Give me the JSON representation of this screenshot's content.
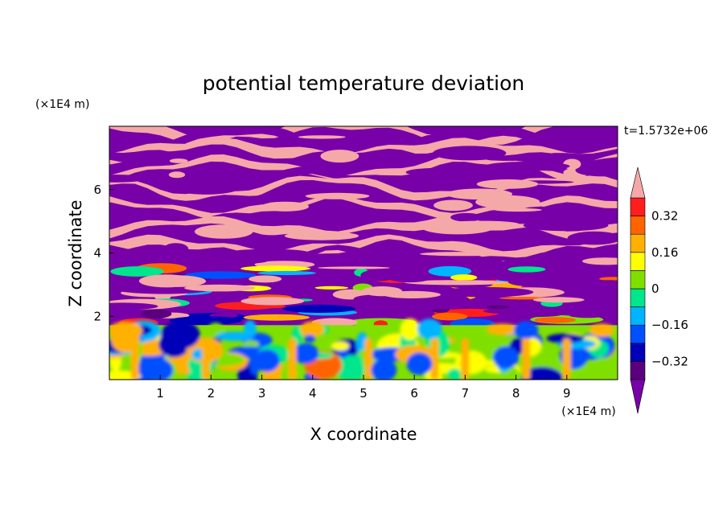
{
  "chart_data": {
    "type": "heatmap",
    "title": "potential temperature deviation",
    "xlabel": "X coordinate",
    "ylabel": "Z coordinate",
    "x_unit": "(×1E4 m)",
    "y_unit": "(×1E4 m)",
    "time_label": "t=1.5732e+06",
    "xlim": [
      0,
      10
    ],
    "ylim": [
      0,
      8
    ],
    "x_ticks": [
      {
        "value": 1,
        "label": "1"
      },
      {
        "value": 2,
        "label": "2"
      },
      {
        "value": 3,
        "label": "3"
      },
      {
        "value": 4,
        "label": "4"
      },
      {
        "value": 5,
        "label": "5"
      },
      {
        "value": 6,
        "label": "6"
      },
      {
        "value": 7,
        "label": "7"
      },
      {
        "value": 8,
        "label": "8"
      },
      {
        "value": 9,
        "label": "9"
      }
    ],
    "y_ticks": [
      {
        "value": 2,
        "label": "2"
      },
      {
        "value": 4,
        "label": "4"
      },
      {
        "value": 6,
        "label": "6"
      }
    ],
    "colorbar": {
      "levels": [
        -0.4,
        -0.32,
        -0.24,
        -0.16,
        -0.08,
        0,
        0.08,
        0.16,
        0.24,
        0.32,
        0.4
      ],
      "colors": [
        "#5a007f",
        "#0000b8",
        "#0050ff",
        "#00b4ff",
        "#00e68c",
        "#7fe000",
        "#ffff00",
        "#ffb000",
        "#ff6400",
        "#ff1e1e"
      ],
      "under_color": "#7800a8",
      "over_color": "#f5a8a8",
      "labels": [
        {
          "value": 0.32,
          "label": "0.32"
        },
        {
          "value": 0.16,
          "label": "0.16"
        },
        {
          "value": 0,
          "label": "0"
        },
        {
          "value": -0.16,
          "label": "−0.16"
        },
        {
          "value": -0.32,
          "label": "−0.32"
        }
      ],
      "extend": "both"
    },
    "field_summary": [
      {
        "z_range": [
          0,
          1.7
        ],
        "pattern": "convective eddies",
        "dominant_values": [
          -0.2,
          0.2
        ]
      },
      {
        "z_range": [
          1.7,
          3.5
        ],
        "pattern": "mixed transition layer",
        "dominant_values": [
          -0.4,
          0.4
        ]
      },
      {
        "z_range": [
          3.5,
          8
        ],
        "pattern": "alternating horizontal layers",
        "dominant_values": [
          "below -0.4",
          "above 0.4"
        ]
      }
    ]
  }
}
